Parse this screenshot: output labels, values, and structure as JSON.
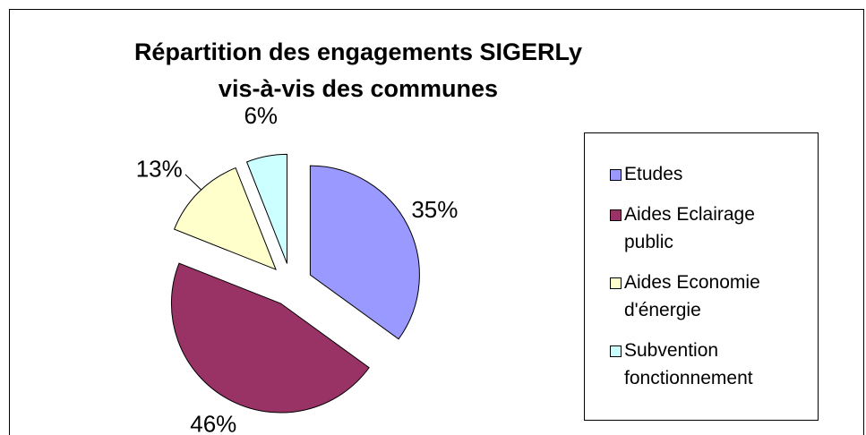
{
  "chart_data": {
    "type": "pie",
    "title": [
      "Répartition des engagements SIGERLy",
      "vis-à-vis des communes"
    ],
    "categories": [
      "Etudes",
      "Aides Eclairage public",
      "Aides Economie d'énergie",
      "Subvention fonctionnement"
    ],
    "values": [
      35,
      46,
      13,
      6
    ],
    "value_labels": [
      "35%",
      "46%",
      "13%",
      "6%"
    ],
    "colors": [
      "#9999ff",
      "#993366",
      "#ffffcc",
      "#ccffff"
    ],
    "legend": "right"
  }
}
